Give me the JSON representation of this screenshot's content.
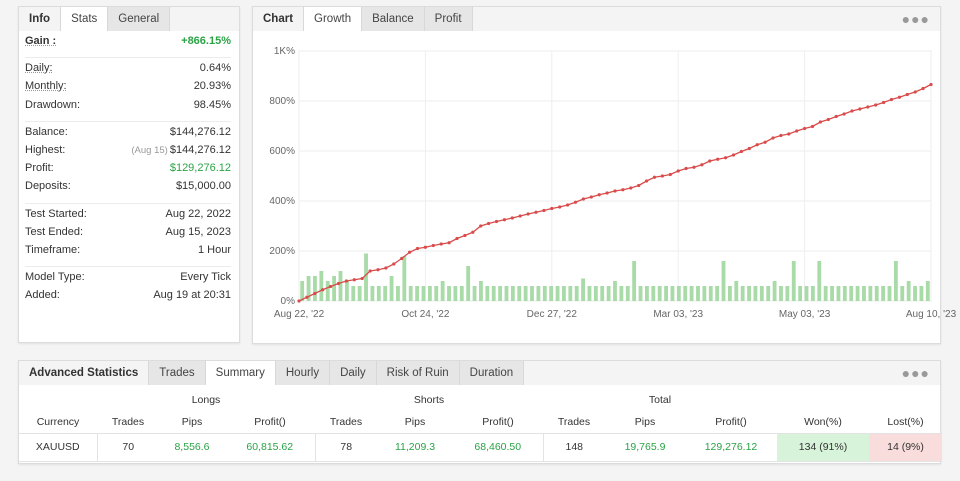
{
  "info": {
    "tabs": [
      "Info",
      "Stats",
      "General"
    ],
    "gain_label": "Gain :",
    "gain_value": "+866.15%",
    "daily_label": "Daily:",
    "daily_value": "0.64%",
    "monthly_label": "Monthly:",
    "monthly_value": "20.93%",
    "drawdown_label": "Drawdown:",
    "drawdown_value": "98.45%",
    "balance_label": "Balance:",
    "balance_value": "$144,276.12",
    "highest_label": "Highest:",
    "highest_note": "(Aug 15)",
    "highest_value": "$144,276.12",
    "profit_label": "Profit:",
    "profit_value": "$129,276.12",
    "deposits_label": "Deposits:",
    "deposits_value": "$15,000.00",
    "test_started_label": "Test Started:",
    "test_started_value": "Aug 22, 2022",
    "test_ended_label": "Test Ended:",
    "test_ended_value": "Aug 15, 2023",
    "timeframe_label": "Timeframe:",
    "timeframe_value": "1 Hour",
    "model_label": "Model Type:",
    "model_value": "Every Tick",
    "added_label": "Added:",
    "added_value": "Aug 19 at 20:31"
  },
  "chart_panel": {
    "tabs": [
      "Chart",
      "Growth",
      "Balance",
      "Profit"
    ],
    "menu_icon": "more-dots-icon"
  },
  "chart_data": {
    "type": "line",
    "title": "",
    "xlabel": "",
    "ylabel": "",
    "x_tick_labels": [
      "Aug 22, '22",
      "Oct 24, '22",
      "Dec 27, '22",
      "Mar 03, '23",
      "May 03, '23",
      "Aug 10, '23"
    ],
    "y_tick_labels": [
      "0%",
      "200%",
      "400%",
      "600%",
      "800%",
      "1K%"
    ],
    "ylim": [
      0,
      1000
    ],
    "grid": true,
    "line_color": "#d94c4c",
    "bar_color": "#a8dba8",
    "series": [
      {
        "type": "line",
        "values": [
          0,
          15,
          30,
          45,
          58,
          70,
          80,
          85,
          90,
          120,
          125,
          132,
          148,
          170,
          195,
          210,
          215,
          222,
          228,
          233,
          250,
          262,
          275,
          300,
          310,
          318,
          325,
          332,
          340,
          348,
          355,
          362,
          370,
          376,
          384,
          395,
          408,
          416,
          425,
          432,
          440,
          445,
          452,
          462,
          480,
          495,
          500,
          506,
          520,
          530,
          535,
          545,
          560,
          567,
          573,
          584,
          598,
          610,
          625,
          635,
          652,
          662,
          668,
          680,
          690,
          698,
          716,
          726,
          738,
          748,
          760,
          768,
          776,
          784,
          794,
          806,
          815,
          826,
          836,
          850,
          866
        ]
      },
      {
        "type": "bar",
        "values": [
          8,
          10,
          10,
          12,
          8,
          10,
          12,
          8,
          6,
          6,
          19,
          6,
          6,
          6,
          10,
          6,
          18,
          6,
          6,
          6,
          6,
          6,
          8,
          6,
          6,
          6,
          14,
          6,
          8,
          6,
          6,
          6,
          6,
          6,
          6,
          6,
          6,
          6,
          6,
          6,
          6,
          6,
          6,
          6,
          9,
          6,
          6,
          6,
          6,
          8,
          6,
          6,
          16,
          6,
          6,
          6,
          6,
          6,
          6,
          6,
          6,
          6,
          6,
          6,
          6,
          6,
          16,
          6,
          8,
          6,
          6,
          6,
          6,
          6,
          8,
          6,
          6,
          16,
          6,
          6,
          6,
          16,
          6,
          6,
          6,
          6,
          6,
          6,
          6,
          6,
          6,
          6,
          6,
          16,
          6,
          8,
          6,
          6,
          8
        ]
      }
    ]
  },
  "adv": {
    "tabs": [
      "Advanced Statistics",
      "Trades",
      "Summary",
      "Hourly",
      "Daily",
      "Risk of Ruin",
      "Duration"
    ],
    "groups": [
      "Longs",
      "Shorts",
      "Total"
    ],
    "headers": [
      "Currency",
      "Trades",
      "Pips",
      "Profit()",
      "Trades",
      "Pips",
      "Profit()",
      "Trades",
      "Pips",
      "Profit()",
      "Won(%)",
      "Lost(%)"
    ],
    "row": [
      "XAUUSD",
      "70",
      "8,556.6",
      "60,815.62",
      "78",
      "11,209.3",
      "68,460.50",
      "148",
      "19,765.9",
      "129,276.12",
      "134 (91%)",
      "14 (9%)"
    ]
  },
  "colors": {
    "green": "#2aa345",
    "won_bg": "#d7f3d9",
    "lost_bg": "#f9dcdc"
  }
}
